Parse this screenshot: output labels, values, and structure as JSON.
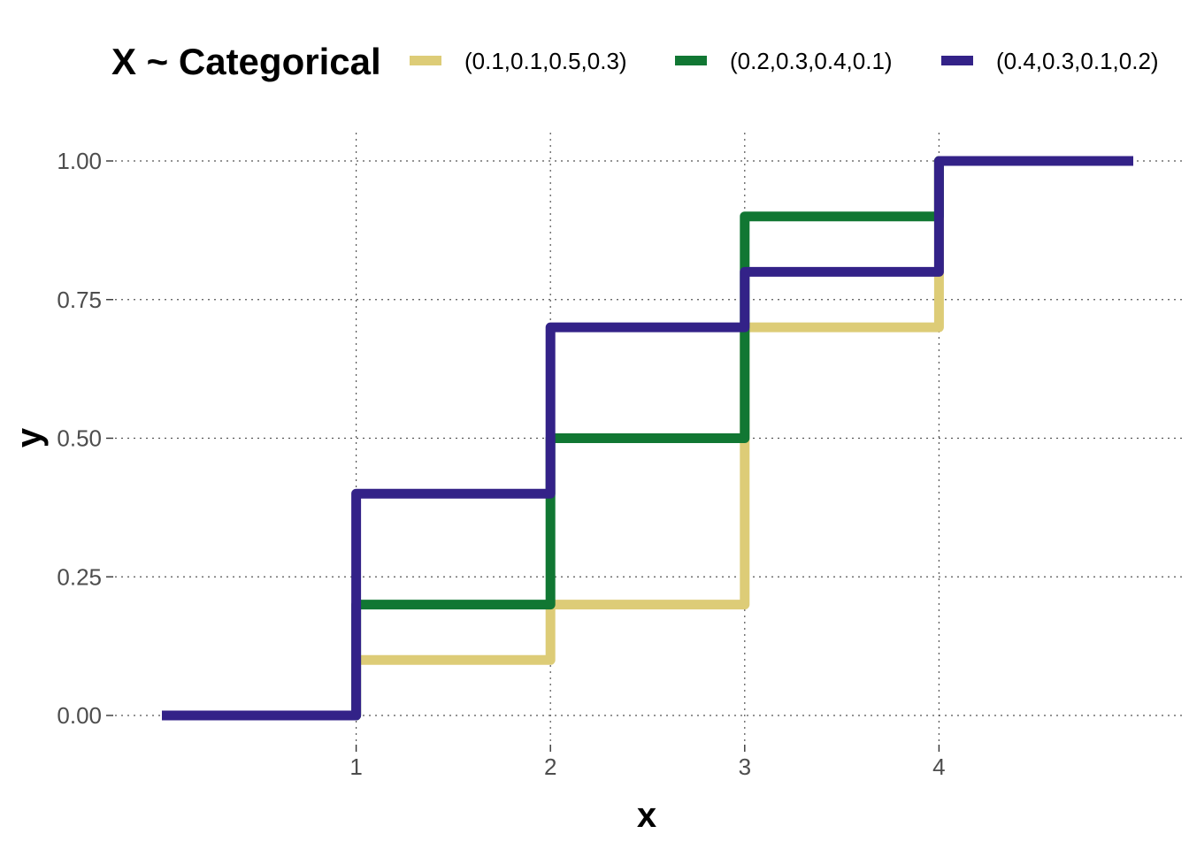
{
  "chart_data": {
    "type": "line",
    "step": true,
    "xlabel": "x",
    "ylabel": "y",
    "xlim": [
      0,
      5
    ],
    "ylim": [
      0,
      1
    ],
    "x_ticks": [
      1,
      2,
      3,
      4
    ],
    "x_tick_labels": [
      "1",
      "2",
      "3",
      "4"
    ],
    "y_ticks": [
      0,
      0.25,
      0.5,
      0.75,
      1.0
    ],
    "y_tick_labels": [
      "0.00",
      "0.25",
      "0.50",
      "0.75",
      "1.00"
    ],
    "grid": true,
    "legend": {
      "title": "X ~ Categorical",
      "position": "top"
    },
    "series": [
      {
        "name": "(0.1,0.1,0.5,0.3)",
        "color": "#DDCC77",
        "x": [
          0,
          1,
          2,
          3,
          4,
          5
        ],
        "y": [
          0,
          0.1,
          0.2,
          0.7,
          1.0,
          1.0
        ]
      },
      {
        "name": "(0.2,0.3,0.4,0.1)",
        "color": "#117733",
        "x": [
          0,
          1,
          2,
          3,
          4,
          5
        ],
        "y": [
          0,
          0.2,
          0.5,
          0.9,
          1.0,
          1.0
        ]
      },
      {
        "name": "(0.4,0.3,0.1,0.2)",
        "color": "#332288",
        "x": [
          0,
          1,
          2,
          3,
          4,
          5
        ],
        "y": [
          0,
          0.4,
          0.7,
          0.8,
          1.0,
          1.0
        ]
      }
    ]
  }
}
